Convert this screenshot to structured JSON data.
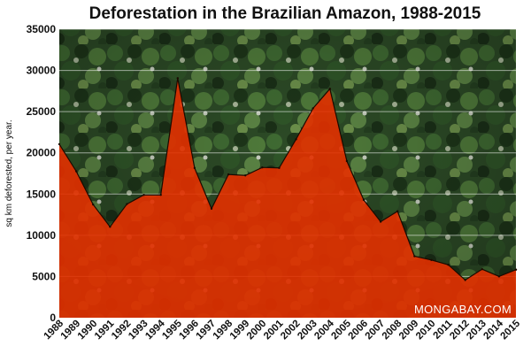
{
  "chart_data": {
    "type": "area",
    "title": "Deforestation in the Brazilian Amazon, 1988-2015",
    "xlabel": "",
    "ylabel": "sq km deforested, per year.",
    "x": [
      "1988",
      "1989",
      "1990",
      "1991",
      "1992",
      "1993",
      "1994",
      "1995",
      "1996",
      "1997",
      "1998",
      "1999",
      "2000",
      "2001",
      "2002",
      "2003",
      "2004",
      "2005",
      "2006",
      "2007",
      "2008",
      "2009",
      "2010",
      "2011",
      "2012",
      "2013",
      "2014",
      "2015"
    ],
    "values": [
      21050,
      17770,
      13730,
      11030,
      13790,
      14900,
      14900,
      29060,
      18160,
      13230,
      17380,
      17260,
      18230,
      18170,
      21650,
      25400,
      27770,
      19010,
      14290,
      11650,
      12910,
      7460,
      7000,
      6420,
      4570,
      5890,
      5010,
      5830
    ],
    "ylim": [
      0,
      35000
    ],
    "yticks": [
      "0",
      "5000",
      "10000",
      "15000",
      "20000",
      "25000",
      "30000",
      "35000"
    ],
    "grid": true,
    "legend": "none",
    "background": "aerial photo of rainforest canopy",
    "colors": {
      "area_fill": "#e33000",
      "area_stroke": "#1a0a00",
      "forest_dark": "#1f3a1c",
      "forest_mid": "#3b5c2c",
      "forest_light": "#6f8a4a"
    }
  },
  "watermark": "MONGABAY.COM"
}
